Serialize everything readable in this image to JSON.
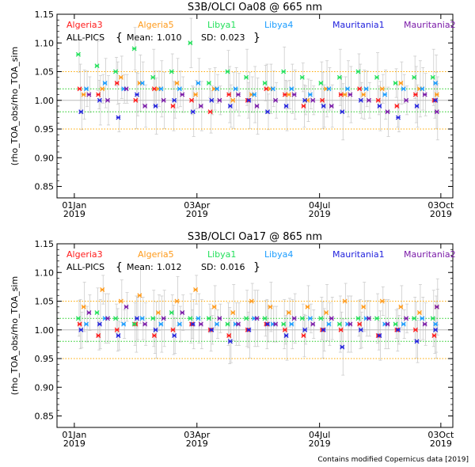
{
  "credit": "Contains modified Copernicus data [2019]",
  "series_legend": [
    {
      "name": "Algeria3",
      "color": "#ff1a1a"
    },
    {
      "name": "Algeria5",
      "color": "#ff9a1a"
    },
    {
      "name": "Libya1",
      "color": "#22e05a"
    },
    {
      "name": "Libya4",
      "color": "#1a9cff"
    },
    {
      "name": "Mauritania1",
      "color": "#2222dd"
    },
    {
      "name": "Mauritania2",
      "color": "#7a1aa8"
    }
  ],
  "chart_data": [
    {
      "type": "scatter",
      "title": "S3B/OLCI Oa08 @ 665 nm",
      "ylabel": "(rho_TOA_obs/rho_TOA_sim",
      "xlabel": "",
      "ylim": [
        0.83,
        1.15
      ],
      "xlim": [
        "2018-12-19",
        "2019-10-12"
      ],
      "yticks": [
        "0.85",
        "0.90",
        "0.95",
        "1.00",
        "1.05",
        "1.10",
        "1.15"
      ],
      "xticks": [
        {
          "date": "2019-01-01",
          "top": "01Jan",
          "bottom": "2019"
        },
        {
          "date": "2019-04-03",
          "top": "03Apr",
          "bottom": "2019"
        },
        {
          "date": "2019-07-04",
          "top": "04Jul",
          "bottom": "2019"
        },
        {
          "date": "2019-10-03",
          "top": "03Oct",
          "bottom": "2019"
        }
      ],
      "reference_lines": [
        {
          "y": 1.0,
          "color": "#bbbbbb",
          "style": "solid"
        },
        {
          "y": 1.02,
          "color": "#22cc22",
          "style": "dotted"
        },
        {
          "y": 0.98,
          "color": "#22cc22",
          "style": "dotted"
        },
        {
          "y": 1.05,
          "color": "#ffaa00",
          "style": "dotted"
        },
        {
          "y": 0.95,
          "color": "#ffaa00",
          "style": "dotted"
        }
      ],
      "stats": {
        "label": "ALL-PICS",
        "mean_label": "Mean:",
        "mean": "1.010",
        "sd_label": "SD:",
        "sd": "0.023"
      },
      "series": [
        {
          "name": "Algeria3",
          "x": [
            "2019-01-05",
            "2019-01-19",
            "2019-02-02",
            "2019-02-16",
            "2019-03-02",
            "2019-03-16",
            "2019-03-30",
            "2019-04-13",
            "2019-04-27",
            "2019-05-11",
            "2019-05-25",
            "2019-06-08",
            "2019-06-22",
            "2019-07-06",
            "2019-07-20",
            "2019-08-03",
            "2019-08-17",
            "2019-08-31",
            "2019-09-14",
            "2019-09-28"
          ],
          "y": [
            1.02,
            1.01,
            1.03,
            1.0,
            1.02,
            0.99,
            1.0,
            0.98,
            1.01,
            1.0,
            1.02,
            1.01,
            0.99,
            1.0,
            1.01,
            1.02,
            1.0,
            0.99,
            1.01,
            1.0
          ]
        },
        {
          "name": "Algeria5",
          "x": [
            "2019-01-08",
            "2019-01-22",
            "2019-02-05",
            "2019-02-19",
            "2019-03-05",
            "2019-03-19",
            "2019-04-02",
            "2019-04-16",
            "2019-04-30",
            "2019-05-14",
            "2019-05-28",
            "2019-06-11",
            "2019-06-25",
            "2019-07-09",
            "2019-07-23",
            "2019-08-06",
            "2019-08-20",
            "2019-09-03",
            "2019-09-17",
            "2019-09-30"
          ],
          "y": [
            1.01,
            1.02,
            1.04,
            1.03,
            1.02,
            1.03,
            1.01,
            1.02,
            1.0,
            1.01,
            1.02,
            1.01,
            1.0,
            1.02,
            1.01,
            1.01,
            1.02,
            1.03,
            1.02,
            1.01
          ]
        },
        {
          "name": "Libya1",
          "x": [
            "2019-01-04",
            "2019-01-18",
            "2019-02-01",
            "2019-02-15",
            "2019-03-01",
            "2019-03-15",
            "2019-03-29",
            "2019-04-12",
            "2019-04-26",
            "2019-05-10",
            "2019-05-24",
            "2019-06-07",
            "2019-06-21",
            "2019-07-05",
            "2019-07-19",
            "2019-08-02",
            "2019-08-16",
            "2019-08-30",
            "2019-09-13",
            "2019-09-27"
          ],
          "y": [
            1.08,
            1.06,
            1.05,
            1.09,
            1.04,
            1.05,
            1.1,
            1.03,
            1.05,
            1.04,
            1.03,
            1.05,
            1.04,
            1.03,
            1.04,
            1.05,
            1.04,
            1.03,
            1.04,
            1.04
          ]
        },
        {
          "name": "Libya4",
          "x": [
            "2019-01-10",
            "2019-01-24",
            "2019-02-07",
            "2019-02-21",
            "2019-03-07",
            "2019-03-21",
            "2019-04-04",
            "2019-04-18",
            "2019-05-02",
            "2019-05-16",
            "2019-05-30",
            "2019-06-13",
            "2019-06-27",
            "2019-07-11",
            "2019-07-25",
            "2019-08-08",
            "2019-08-22",
            "2019-09-05",
            "2019-09-19",
            "2019-09-29"
          ],
          "y": [
            1.02,
            1.03,
            1.02,
            1.03,
            1.02,
            1.02,
            1.03,
            1.02,
            1.02,
            1.01,
            1.02,
            1.02,
            1.01,
            1.02,
            1.02,
            1.02,
            1.01,
            1.02,
            1.02,
            1.03
          ]
        },
        {
          "name": "Mauritania1",
          "x": [
            "2019-01-06",
            "2019-01-20",
            "2019-02-03",
            "2019-02-17",
            "2019-03-03",
            "2019-03-17",
            "2019-03-31",
            "2019-04-14",
            "2019-04-28",
            "2019-05-12",
            "2019-05-26",
            "2019-06-09",
            "2019-06-23",
            "2019-07-07",
            "2019-07-21",
            "2019-08-04",
            "2019-08-18",
            "2019-09-01",
            "2019-09-15",
            "2019-09-29"
          ],
          "y": [
            0.98,
            1.0,
            0.97,
            1.01,
            0.99,
            1.0,
            0.98,
            1.0,
            0.99,
            1.0,
            0.98,
            0.99,
            1.0,
            0.99,
            0.98,
            1.0,
            0.99,
            0.97,
            0.99,
            1.0
          ]
        },
        {
          "name": "Mauritania2",
          "x": [
            "2019-01-12",
            "2019-01-26",
            "2019-02-09",
            "2019-02-23",
            "2019-03-09",
            "2019-03-23",
            "2019-04-06",
            "2019-04-20",
            "2019-05-04",
            "2019-05-18",
            "2019-06-01",
            "2019-06-15",
            "2019-06-29",
            "2019-07-13",
            "2019-07-27",
            "2019-08-10",
            "2019-08-24",
            "2019-09-07",
            "2019-09-21",
            "2019-09-30"
          ],
          "y": [
            1.01,
            1.0,
            1.02,
            0.99,
            1.0,
            1.01,
            0.99,
            1.0,
            1.01,
            0.99,
            1.0,
            1.01,
            1.0,
            0.99,
            1.01,
            1.0,
            0.98,
            1.0,
            1.01,
            0.98
          ]
        }
      ]
    },
    {
      "type": "scatter",
      "title": "S3B/OLCI Oa17 @ 865 nm",
      "ylabel": "(rho_TOA_obs/rho_TOA_sim",
      "xlabel": "",
      "ylim": [
        0.83,
        1.15
      ],
      "xlim": [
        "2018-12-19",
        "2019-10-12"
      ],
      "yticks": [
        "0.85",
        "0.90",
        "0.95",
        "1.00",
        "1.05",
        "1.10",
        "1.15"
      ],
      "xticks": [
        {
          "date": "2019-01-01",
          "top": "01Jan",
          "bottom": "2019"
        },
        {
          "date": "2019-04-03",
          "top": "03Apr",
          "bottom": "2019"
        },
        {
          "date": "2019-07-04",
          "top": "04Jul",
          "bottom": "2019"
        },
        {
          "date": "2019-10-03",
          "top": "03Oct",
          "bottom": "2019"
        }
      ],
      "reference_lines": [
        {
          "y": 1.0,
          "color": "#bbbbbb",
          "style": "solid"
        },
        {
          "y": 1.02,
          "color": "#22cc22",
          "style": "dotted"
        },
        {
          "y": 0.98,
          "color": "#22cc22",
          "style": "dotted"
        },
        {
          "y": 1.05,
          "color": "#ffaa00",
          "style": "dotted"
        },
        {
          "y": 0.95,
          "color": "#ffaa00",
          "style": "dotted"
        }
      ],
      "stats": {
        "label": "ALL-PICS",
        "mean_label": "Mean:",
        "mean": "1.012",
        "sd_label": "SD:",
        "sd": "0.016"
      },
      "series": [
        {
          "name": "Algeria3",
          "x": [
            "2019-01-05",
            "2019-01-19",
            "2019-02-02",
            "2019-02-16",
            "2019-03-02",
            "2019-03-16",
            "2019-03-30",
            "2019-04-13",
            "2019-04-27",
            "2019-05-11",
            "2019-05-25",
            "2019-06-08",
            "2019-06-22",
            "2019-07-06",
            "2019-07-20",
            "2019-08-03",
            "2019-08-17",
            "2019-08-31",
            "2019-09-14",
            "2019-09-28"
          ],
          "y": [
            1.01,
            0.99,
            1.0,
            1.01,
            0.99,
            1.0,
            1.01,
            1.0,
            0.99,
            1.0,
            1.01,
            1.0,
            0.99,
            1.0,
            1.0,
            1.01,
            0.99,
            1.0,
            1.0,
            0.99
          ]
        },
        {
          "name": "Algeria5",
          "x": [
            "2019-01-08",
            "2019-01-22",
            "2019-02-05",
            "2019-02-19",
            "2019-03-05",
            "2019-03-19",
            "2019-04-02",
            "2019-04-16",
            "2019-04-30",
            "2019-05-14",
            "2019-05-28",
            "2019-06-11",
            "2019-06-25",
            "2019-07-09",
            "2019-07-23",
            "2019-08-06",
            "2019-08-20",
            "2019-09-03",
            "2019-09-17",
            "2019-09-30"
          ],
          "y": [
            1.04,
            1.07,
            1.05,
            1.06,
            1.03,
            1.05,
            1.07,
            1.04,
            1.03,
            1.05,
            1.04,
            1.03,
            1.04,
            1.03,
            1.05,
            1.04,
            1.05,
            1.04,
            1.03,
            1.04
          ]
        },
        {
          "name": "Libya1",
          "x": [
            "2019-01-04",
            "2019-01-18",
            "2019-02-01",
            "2019-02-15",
            "2019-03-01",
            "2019-03-15",
            "2019-03-29",
            "2019-04-12",
            "2019-04-26",
            "2019-05-10",
            "2019-05-24",
            "2019-06-07",
            "2019-06-21",
            "2019-07-05",
            "2019-07-19",
            "2019-08-02",
            "2019-08-16",
            "2019-08-30",
            "2019-09-13",
            "2019-09-27"
          ],
          "y": [
            1.02,
            1.03,
            1.02,
            1.01,
            1.02,
            1.03,
            1.02,
            1.02,
            1.01,
            1.02,
            1.02,
            1.01,
            1.02,
            1.02,
            1.01,
            1.02,
            1.02,
            1.01,
            1.02,
            1.02
          ]
        },
        {
          "name": "Libya4",
          "x": [
            "2019-01-10",
            "2019-01-24",
            "2019-02-07",
            "2019-02-21",
            "2019-03-07",
            "2019-03-21",
            "2019-04-04",
            "2019-04-18",
            "2019-05-02",
            "2019-05-16",
            "2019-05-30",
            "2019-06-13",
            "2019-06-27",
            "2019-07-11",
            "2019-07-25",
            "2019-08-08",
            "2019-08-22",
            "2019-09-05",
            "2019-09-19",
            "2019-09-29"
          ],
          "y": [
            1.01,
            1.02,
            1.01,
            1.02,
            1.01,
            1.01,
            1.02,
            1.01,
            1.01,
            1.02,
            1.01,
            1.01,
            1.02,
            1.01,
            1.01,
            1.02,
            1.01,
            1.01,
            1.02,
            1.01
          ]
        },
        {
          "name": "Mauritania1",
          "x": [
            "2019-01-06",
            "2019-01-20",
            "2019-02-03",
            "2019-02-17",
            "2019-03-03",
            "2019-03-17",
            "2019-03-31",
            "2019-04-14",
            "2019-04-28",
            "2019-05-12",
            "2019-05-26",
            "2019-06-09",
            "2019-06-23",
            "2019-07-07",
            "2019-07-21",
            "2019-08-04",
            "2019-08-18",
            "2019-09-01",
            "2019-09-15",
            "2019-09-29"
          ],
          "y": [
            1.0,
            1.01,
            0.99,
            1.02,
            1.0,
            0.99,
            1.01,
            1.0,
            0.98,
            1.0,
            1.01,
            0.99,
            1.0,
            1.0,
            0.97,
            1.0,
            0.99,
            1.0,
            0.98,
            1.0
          ]
        },
        {
          "name": "Mauritania2",
          "x": [
            "2019-01-12",
            "2019-01-26",
            "2019-02-09",
            "2019-02-23",
            "2019-03-09",
            "2019-03-23",
            "2019-04-06",
            "2019-04-20",
            "2019-05-04",
            "2019-05-18",
            "2019-06-01",
            "2019-06-15",
            "2019-06-29",
            "2019-07-13",
            "2019-07-27",
            "2019-08-10",
            "2019-08-24",
            "2019-09-07",
            "2019-09-21",
            "2019-09-30"
          ],
          "y": [
            1.03,
            1.02,
            1.04,
            1.01,
            1.02,
            1.03,
            1.01,
            1.02,
            1.01,
            1.02,
            1.01,
            1.02,
            1.01,
            1.02,
            1.01,
            1.02,
            1.01,
            1.02,
            1.01,
            1.04
          ]
        }
      ]
    }
  ]
}
